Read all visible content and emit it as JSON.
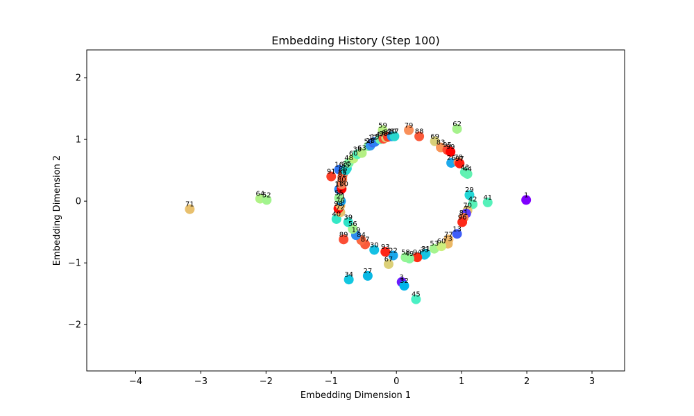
{
  "chart_data": {
    "type": "scatter",
    "title": "Embedding History (Step 100)",
    "xlabel": "Embedding Dimension 1",
    "ylabel": "Embedding Dimension 2",
    "xlim": [
      -4.75,
      3.5
    ],
    "ylim": [
      -2.75,
      2.45
    ],
    "xticks": [
      -4,
      -3,
      -2,
      -1,
      0,
      1,
      2,
      3
    ],
    "yticks": [
      -2,
      -1,
      0,
      1,
      2
    ],
    "grid": false,
    "points": [
      {
        "label": "1",
        "x": 1.99,
        "y": 0.02,
        "color": "#7f00ff"
      },
      {
        "label": "3",
        "x": 0.08,
        "y": -1.31,
        "color": "#6a1cfe"
      },
      {
        "label": "13",
        "x": 0.93,
        "y": -0.53,
        "color": "#3f5ef8"
      },
      {
        "label": "16",
        "x": -0.88,
        "y": 0.51,
        "color": "#2f75f4"
      },
      {
        "label": "27",
        "x": -0.44,
        "y": -1.21,
        "color": "#09b8e4"
      },
      {
        "label": "34",
        "x": -0.73,
        "y": -1.27,
        "color": "#12c7e0"
      },
      {
        "label": "32",
        "x": 0.12,
        "y": -1.37,
        "color": "#00b5eb"
      },
      {
        "label": "45",
        "x": 0.3,
        "y": -1.59,
        "color": "#4af0c4"
      },
      {
        "label": "71",
        "x": -3.17,
        "y": -0.13,
        "color": "#e8c06e"
      },
      {
        "label": "64",
        "x": -2.09,
        "y": 0.04,
        "color": "#b0f286"
      },
      {
        "label": "52",
        "x": -1.99,
        "y": 0.02,
        "color": "#a2f48e"
      },
      {
        "label": "59",
        "x": -0.21,
        "y": 1.15,
        "color": "#b6ef83"
      },
      {
        "label": "79",
        "x": 0.19,
        "y": 1.15,
        "color": "#f9905a"
      },
      {
        "label": "88",
        "x": 0.35,
        "y": 1.05,
        "color": "#fb5a3a"
      },
      {
        "label": "69",
        "x": 0.59,
        "y": 0.97,
        "color": "#d8cf78"
      },
      {
        "label": "62",
        "x": 0.93,
        "y": 1.17,
        "color": "#a6f28c"
      },
      {
        "label": "83",
        "x": 0.68,
        "y": 0.87,
        "color": "#f99558"
      },
      {
        "label": "95",
        "x": 0.78,
        "y": 0.83,
        "color": "#fc4a33"
      },
      {
        "label": "99",
        "x": 0.83,
        "y": 0.8,
        "color": "#ff0000"
      },
      {
        "label": "26",
        "x": 0.84,
        "y": 0.62,
        "color": "#1da9eb"
      },
      {
        "label": "78",
        "x": 0.95,
        "y": 0.63,
        "color": "#f58b57"
      },
      {
        "label": "97",
        "x": 0.97,
        "y": 0.61,
        "color": "#fe1c10"
      },
      {
        "label": "43",
        "x": 1.05,
        "y": 0.47,
        "color": "#5ef0b4"
      },
      {
        "label": "44",
        "x": 1.09,
        "y": 0.44,
        "color": "#62f2b2"
      },
      {
        "label": "29",
        "x": 1.12,
        "y": 0.1,
        "color": "#22d7d6"
      },
      {
        "label": "42",
        "x": 1.17,
        "y": -0.05,
        "color": "#58f2b8"
      },
      {
        "label": "41",
        "x": 1.4,
        "y": -0.02,
        "color": "#56f1ba"
      },
      {
        "label": "70",
        "x": 1.09,
        "y": -0.15,
        "color": "#e5c472"
      },
      {
        "label": "7",
        "x": 1.07,
        "y": -0.2,
        "color": "#5a3cfa"
      },
      {
        "label": "81",
        "x": 1.03,
        "y": -0.27,
        "color": "#fa7a4d"
      },
      {
        "label": "96",
        "x": 1.01,
        "y": -0.34,
        "color": "#fd2a18"
      },
      {
        "label": "77",
        "x": 0.8,
        "y": -0.62,
        "color": "#f4bb6c"
      },
      {
        "label": "73",
        "x": 0.79,
        "y": -0.69,
        "color": "#ebb865"
      },
      {
        "label": "53",
        "x": 0.58,
        "y": -0.77,
        "color": "#a5f48e"
      },
      {
        "label": "60",
        "x": 0.69,
        "y": -0.73,
        "color": "#ccef7e"
      },
      {
        "label": "31",
        "x": 0.45,
        "y": -0.85,
        "color": "#1fcbe2"
      },
      {
        "label": "33",
        "x": 0.43,
        "y": -0.87,
        "color": "#16c4e2"
      },
      {
        "label": "94",
        "x": 0.32,
        "y": -0.91,
        "color": "#fe2d15"
      },
      {
        "label": "49",
        "x": 0.2,
        "y": -0.93,
        "color": "#86f6a0"
      },
      {
        "label": "58",
        "x": 0.14,
        "y": -0.91,
        "color": "#94f594"
      },
      {
        "label": "22",
        "x": -0.05,
        "y": -0.88,
        "color": "#1ba6eb"
      },
      {
        "label": "67",
        "x": -0.12,
        "y": -1.02,
        "color": "#dcd078"
      },
      {
        "label": "93",
        "x": -0.17,
        "y": -0.82,
        "color": "#fe2618"
      },
      {
        "label": "30",
        "x": -0.34,
        "y": -0.79,
        "color": "#14c0e4"
      },
      {
        "label": "87",
        "x": -0.48,
        "y": -0.7,
        "color": "#fa5c3b"
      },
      {
        "label": "84",
        "x": -0.54,
        "y": -0.63,
        "color": "#fb6a42"
      },
      {
        "label": "19",
        "x": -0.62,
        "y": -0.55,
        "color": "#2f8ef0"
      },
      {
        "label": "89",
        "x": -0.81,
        "y": -0.62,
        "color": "#fb4e35"
      },
      {
        "label": "56",
        "x": -0.67,
        "y": -0.45,
        "color": "#a4f48e"
      },
      {
        "label": "39",
        "x": -0.74,
        "y": -0.34,
        "color": "#2ee3c8"
      },
      {
        "label": "40",
        "x": -0.92,
        "y": -0.29,
        "color": "#34e8c6"
      },
      {
        "label": "72",
        "x": -0.86,
        "y": -0.18,
        "color": "#e8c36e"
      },
      {
        "label": "98",
        "x": -0.89,
        "y": -0.12,
        "color": "#ff0c06"
      },
      {
        "label": "76",
        "x": -0.86,
        "y": -0.07,
        "color": "#efb768"
      },
      {
        "label": "21",
        "x": -0.85,
        "y": 0.0,
        "color": "#1aa2ec"
      },
      {
        "label": "55",
        "x": -0.88,
        "y": 0.05,
        "color": "#98f594"
      },
      {
        "label": "17",
        "x": -0.88,
        "y": 0.19,
        "color": "#2a8af2"
      },
      {
        "label": "100",
        "x": -0.84,
        "y": 0.2,
        "color": "#ff0000"
      },
      {
        "label": "80",
        "x": -0.84,
        "y": 0.27,
        "color": "#f8845a"
      },
      {
        "label": "82",
        "x": -0.83,
        "y": 0.35,
        "color": "#fa8252"
      },
      {
        "label": "85",
        "x": -0.83,
        "y": 0.39,
        "color": "#fc6a40"
      },
      {
        "label": "86",
        "x": -0.82,
        "y": 0.44,
        "color": "#fb6640"
      },
      {
        "label": "91",
        "x": -1.0,
        "y": 0.4,
        "color": "#fd3f28"
      },
      {
        "label": "35",
        "x": -0.78,
        "y": 0.5,
        "color": "#1ed0d8"
      },
      {
        "label": "25",
        "x": -0.76,
        "y": 0.53,
        "color": "#27d9d0"
      },
      {
        "label": "48",
        "x": -0.73,
        "y": 0.62,
        "color": "#80f6a4"
      },
      {
        "label": "60",
        "x": -0.66,
        "y": 0.69,
        "color": "#c0f180"
      },
      {
        "label": "38",
        "x": -0.6,
        "y": 0.76,
        "color": "#58f2b8"
      },
      {
        "label": "63",
        "x": -0.53,
        "y": 0.78,
        "color": "#b4f084"
      },
      {
        "label": "50",
        "x": -0.43,
        "y": 0.89,
        "color": "#8cf49a"
      },
      {
        "label": "18",
        "x": -0.4,
        "y": 0.9,
        "color": "#3498ef"
      },
      {
        "label": "12",
        "x": -0.36,
        "y": 0.95,
        "color": "#3d66f8"
      },
      {
        "label": "15",
        "x": -0.33,
        "y": 0.96,
        "color": "#2e80f3"
      },
      {
        "label": "47",
        "x": -0.25,
        "y": 1.0,
        "color": "#6ef4ac"
      },
      {
        "label": "90",
        "x": -0.2,
        "y": 1.01,
        "color": "#fc4b31"
      },
      {
        "label": "68",
        "x": -0.16,
        "y": 1.03,
        "color": "#d9cf76"
      },
      {
        "label": "92",
        "x": -0.13,
        "y": 1.04,
        "color": "#fd3a22"
      },
      {
        "label": "20",
        "x": -0.07,
        "y": 1.05,
        "color": "#1c9bed"
      },
      {
        "label": "37",
        "x": -0.03,
        "y": 1.05,
        "color": "#2ad8d0"
      }
    ]
  }
}
